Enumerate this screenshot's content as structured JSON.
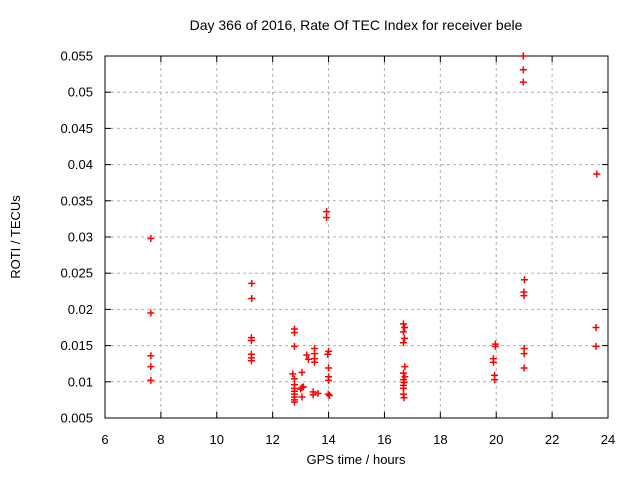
{
  "chart_data": {
    "type": "scatter",
    "title": "Day 366 of 2016, Rate Of TEC Index for receiver bele",
    "xlabel": "GPS time / hours",
    "ylabel": "ROTI / TECUs",
    "xlim": [
      6,
      24
    ],
    "ylim": [
      0.005,
      0.055
    ],
    "xtick_values": [
      6,
      8,
      10,
      12,
      14,
      16,
      18,
      20,
      22,
      24
    ],
    "xtick_labels": [
      "6",
      "8",
      "10",
      "12",
      "14",
      "16",
      "18",
      "20",
      "22",
      "24"
    ],
    "ytick_values": [
      0.005,
      0.01,
      0.015,
      0.02,
      0.025,
      0.03,
      0.035,
      0.04,
      0.045,
      0.05,
      0.055
    ],
    "ytick_labels": [
      "0.005",
      "0.01",
      "0.015",
      "0.02",
      "0.025",
      "0.03",
      "0.035",
      "0.04",
      "0.045",
      "0.05",
      "0.055"
    ],
    "grid": true,
    "legend": "none",
    "marker": "plus",
    "marker_color": "#ff0000",
    "marker_size": 3.5,
    "grid_color": "#b0b0b0",
    "axis_color": "#000000",
    "series": [
      {
        "name": "ROTI",
        "points": [
          [
            7.64,
            0.0298
          ],
          [
            7.64,
            0.0195
          ],
          [
            7.64,
            0.0136
          ],
          [
            7.64,
            0.0121
          ],
          [
            7.64,
            0.0102
          ],
          [
            11.25,
            0.0236
          ],
          [
            11.25,
            0.0215
          ],
          [
            11.24,
            0.0161
          ],
          [
            11.24,
            0.0157
          ],
          [
            11.24,
            0.0138
          ],
          [
            11.24,
            0.0133
          ],
          [
            11.24,
            0.0129
          ],
          [
            12.78,
            0.0173
          ],
          [
            12.78,
            0.0168
          ],
          [
            12.78,
            0.0149
          ],
          [
            12.72,
            0.0111
          ],
          [
            12.78,
            0.0104
          ],
          [
            12.78,
            0.0096
          ],
          [
            12.78,
            0.0091
          ],
          [
            12.78,
            0.0087
          ],
          [
            12.78,
            0.0083
          ],
          [
            12.78,
            0.0079
          ],
          [
            12.78,
            0.0075
          ],
          [
            12.78,
            0.0072
          ],
          [
            13.05,
            0.0113
          ],
          [
            13.05,
            0.0092
          ],
          [
            13.0,
            0.009
          ],
          [
            13.05,
            0.0079
          ],
          [
            13.22,
            0.0137
          ],
          [
            13.28,
            0.0131
          ],
          [
            13.1,
            0.0093
          ],
          [
            13.5,
            0.0146
          ],
          [
            13.5,
            0.0139
          ],
          [
            13.5,
            0.0132
          ],
          [
            13.5,
            0.0127
          ],
          [
            13.45,
            0.0086
          ],
          [
            13.45,
            0.0082
          ],
          [
            13.62,
            0.0084
          ],
          [
            13.93,
            0.0335
          ],
          [
            13.93,
            0.0327
          ],
          [
            14.0,
            0.0142
          ],
          [
            13.97,
            0.0138
          ],
          [
            14.0,
            0.0119
          ],
          [
            14.0,
            0.0107
          ],
          [
            14.0,
            0.0102
          ],
          [
            13.99,
            0.0083
          ],
          [
            14.03,
            0.0081
          ],
          [
            16.68,
            0.018
          ],
          [
            16.72,
            0.0175
          ],
          [
            16.68,
            0.0169
          ],
          [
            16.72,
            0.016
          ],
          [
            16.68,
            0.0154
          ],
          [
            16.73,
            0.0121
          ],
          [
            16.68,
            0.0112
          ],
          [
            16.73,
            0.0107
          ],
          [
            16.68,
            0.0103
          ],
          [
            16.7,
            0.0099
          ],
          [
            16.68,
            0.0095
          ],
          [
            16.68,
            0.0091
          ],
          [
            16.68,
            0.0083
          ],
          [
            16.7,
            0.0078
          ],
          [
            19.97,
            0.0152
          ],
          [
            19.97,
            0.0149
          ],
          [
            19.9,
            0.0132
          ],
          [
            19.9,
            0.0127
          ],
          [
            19.94,
            0.0109
          ],
          [
            19.94,
            0.0103
          ],
          [
            20.97,
            0.055
          ],
          [
            20.97,
            0.0531
          ],
          [
            20.97,
            0.0514
          ],
          [
            21.01,
            0.0241
          ],
          [
            20.99,
            0.0224
          ],
          [
            20.99,
            0.0219
          ],
          [
            21.0,
            0.0146
          ],
          [
            21.0,
            0.0139
          ],
          [
            21.0,
            0.0119
          ],
          [
            23.6,
            0.0387
          ],
          [
            23.57,
            0.0175
          ],
          [
            23.57,
            0.0149
          ]
        ]
      }
    ]
  }
}
